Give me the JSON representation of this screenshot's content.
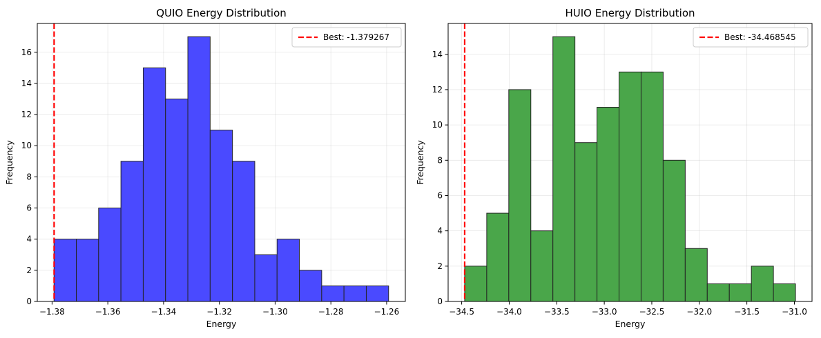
{
  "chart_data": [
    {
      "type": "bar",
      "subtype": "histogram",
      "title": "QUIO Energy Distribution",
      "xlabel": "Energy",
      "ylabel": "Frequency",
      "bin_edges": [
        -1.3793,
        -1.3713,
        -1.3633,
        -1.3553,
        -1.3473,
        -1.3393,
        -1.3313,
        -1.3233,
        -1.3153,
        -1.3073,
        -1.2993,
        -1.2913,
        -1.2833,
        -1.2753,
        -1.2673,
        -1.2593
      ],
      "values": [
        4,
        4,
        6,
        9,
        15,
        13,
        17,
        11,
        9,
        3,
        4,
        2,
        1,
        1,
        1
      ],
      "bar_color": "#4a4aff",
      "xlim": [
        -1.3853,
        -1.2533
      ],
      "ylim": [
        0,
        17.85
      ],
      "xticks": [
        -1.38,
        -1.36,
        -1.34,
        -1.32,
        -1.3,
        -1.28,
        -1.26
      ],
      "xtick_labels": [
        "−1.38",
        "−1.36",
        "−1.34",
        "−1.32",
        "−1.30",
        "−1.28",
        "−1.26"
      ],
      "yticks": [
        0,
        2,
        4,
        6,
        8,
        10,
        12,
        14,
        16
      ],
      "ytick_labels": [
        "0",
        "2",
        "4",
        "6",
        "8",
        "10",
        "12",
        "14",
        "16"
      ],
      "grid": true,
      "best_line": {
        "value": -1.379267,
        "label": "Best: -1.379267",
        "color": "#ff0000"
      },
      "legend_position": "top-right"
    },
    {
      "type": "bar",
      "subtype": "histogram",
      "title": "HUIO Energy Distribution",
      "xlabel": "Energy",
      "ylabel": "Frequency",
      "bin_edges": [
        -34.4685,
        -34.2365,
        -34.0045,
        -33.7725,
        -33.5405,
        -33.3085,
        -33.0765,
        -32.8445,
        -32.6125,
        -32.3805,
        -32.1485,
        -31.9165,
        -31.6845,
        -31.4525,
        -31.2205,
        -30.9885
      ],
      "values": [
        2,
        5,
        12,
        4,
        15,
        9,
        11,
        13,
        13,
        8,
        3,
        1,
        1,
        2,
        1
      ],
      "bar_color": "#4aa64a",
      "xlim": [
        -34.6425,
        -30.8145
      ],
      "ylim": [
        0,
        15.75
      ],
      "xticks": [
        -34.5,
        -34.0,
        -33.5,
        -33.0,
        -32.5,
        -32.0,
        -31.5,
        -31.0
      ],
      "xtick_labels": [
        "−34.5",
        "−34.0",
        "−33.5",
        "−33.0",
        "−32.5",
        "−32.0",
        "−31.5",
        "−31.0"
      ],
      "yticks": [
        0,
        2,
        4,
        6,
        8,
        10,
        12,
        14
      ],
      "ytick_labels": [
        "0",
        "2",
        "4",
        "6",
        "8",
        "10",
        "12",
        "14"
      ],
      "grid": true,
      "best_line": {
        "value": -34.468545,
        "label": "Best: -34.468545",
        "color": "#ff0000"
      },
      "legend_position": "top-right"
    }
  ]
}
